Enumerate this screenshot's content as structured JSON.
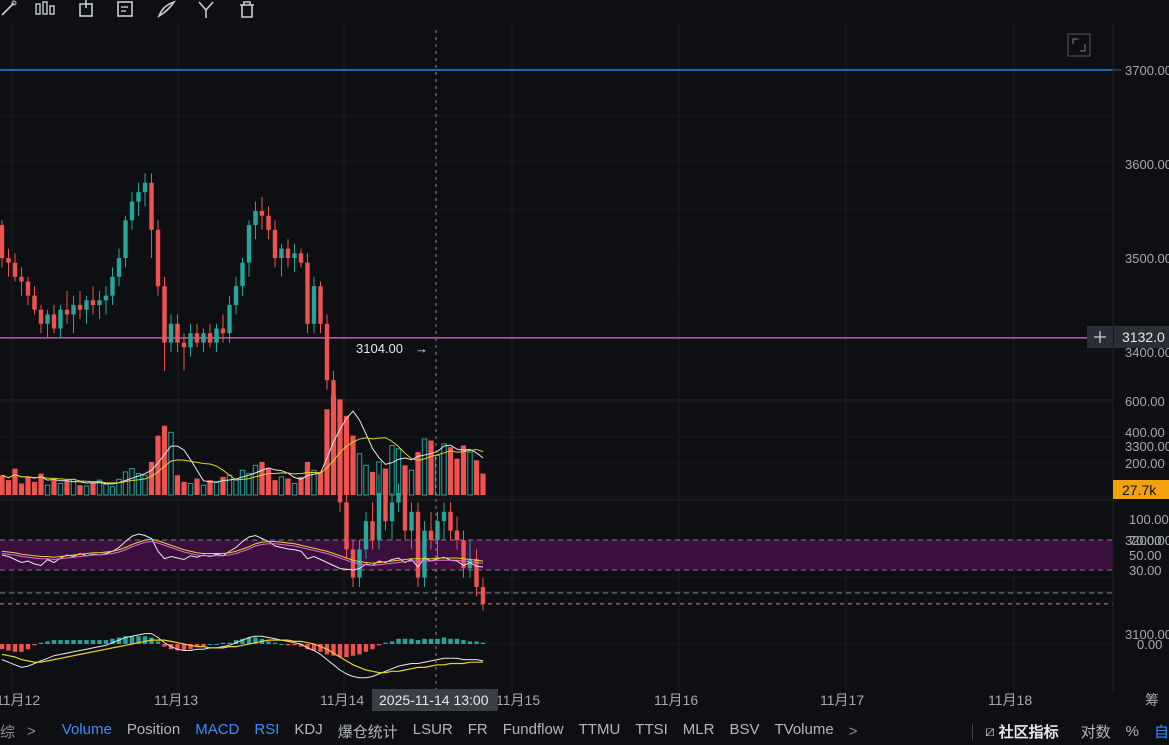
{
  "toolbar": {
    "icons": [
      "line-tool-icon",
      "candlestick-icon",
      "box-tool-icon",
      "note-edit-icon",
      "brush-icon",
      "fork-icon",
      "trash-icon"
    ]
  },
  "price_axis": {
    "ticks": [
      "3700.00",
      "3600.00",
      "3500.00",
      "3400.00",
      "3300.00",
      "3200.00",
      "3100.00"
    ],
    "current_price": "3132.0",
    "low_marker": "3104.00"
  },
  "volume_axis": {
    "ticks": [
      "600.00",
      "400.00",
      "200.00"
    ],
    "current_value": "27.7k"
  },
  "rsi_axis": {
    "ticks": [
      "100.00",
      "70.00",
      "50.00",
      "30.00"
    ]
  },
  "macd_axis": {
    "ticks": [
      "0.00"
    ]
  },
  "time_axis": {
    "ticks": [
      "11月12",
      "11月13",
      "11月14",
      "11月15",
      "11月16",
      "11月17",
      "11月18"
    ],
    "crosshair_label": "2025-11-14 13:00",
    "corner_label": "筹"
  },
  "bottom_bar": {
    "left_text": "综",
    "indicators": [
      {
        "label": "Volume",
        "active": true
      },
      {
        "label": "Position",
        "active": false
      },
      {
        "label": "MACD",
        "active": true
      },
      {
        "label": "RSI",
        "active": true
      },
      {
        "label": "KDJ",
        "active": false
      },
      {
        "label": "爆仓统计",
        "active": false
      },
      {
        "label": "LSUR",
        "active": false
      },
      {
        "label": "FR",
        "active": false
      },
      {
        "label": "Fundflow",
        "active": false
      },
      {
        "label": "TTMU",
        "active": false
      },
      {
        "label": "TTSI",
        "active": false
      },
      {
        "label": "MLR",
        "active": false
      },
      {
        "label": "BSV",
        "active": false
      },
      {
        "label": "TVolume",
        "active": false
      }
    ],
    "community_label": "社区指标",
    "log_label": "对数",
    "percent_label": "%",
    "auto_label": "自"
  },
  "colors": {
    "up": "#26a69a",
    "down": "#ef5350",
    "blue_line": "#2f7be5",
    "pink_line": "#e26ad4",
    "rsi_band": "#3a0f3e",
    "accent": "#3e8cf6",
    "volume_badge": "#f2a20a"
  },
  "chart_data": {
    "type": "candlestick",
    "candles": [
      [
        3535,
        3540,
        3490,
        3500
      ],
      [
        3500,
        3510,
        3480,
        3495
      ],
      [
        3495,
        3505,
        3475,
        3480
      ],
      [
        3480,
        3490,
        3460,
        3475
      ],
      [
        3475,
        3480,
        3450,
        3460
      ],
      [
        3460,
        3470,
        3440,
        3445
      ],
      [
        3445,
        3450,
        3420,
        3430
      ],
      [
        3430,
        3445,
        3415,
        3440
      ],
      [
        3440,
        3450,
        3420,
        3425
      ],
      [
        3425,
        3450,
        3415,
        3445
      ],
      [
        3445,
        3465,
        3430,
        3440
      ],
      [
        3440,
        3460,
        3420,
        3450
      ],
      [
        3450,
        3465,
        3435,
        3445
      ],
      [
        3445,
        3460,
        3430,
        3455
      ],
      [
        3455,
        3470,
        3440,
        3450
      ],
      [
        3450,
        3465,
        3435,
        3455
      ],
      [
        3455,
        3470,
        3440,
        3460
      ],
      [
        3460,
        3490,
        3450,
        3480
      ],
      [
        3480,
        3510,
        3470,
        3500
      ],
      [
        3500,
        3545,
        3490,
        3540
      ],
      [
        3540,
        3570,
        3530,
        3560
      ],
      [
        3560,
        3580,
        3545,
        3570
      ],
      [
        3570,
        3590,
        3555,
        3580
      ],
      [
        3580,
        3590,
        3500,
        3530
      ],
      [
        3530,
        3540,
        3460,
        3470
      ],
      [
        3470,
        3480,
        3380,
        3410
      ],
      [
        3410,
        3440,
        3400,
        3430
      ],
      [
        3430,
        3440,
        3400,
        3410
      ],
      [
        3410,
        3420,
        3380,
        3405
      ],
      [
        3405,
        3430,
        3395,
        3420
      ],
      [
        3420,
        3430,
        3405,
        3410
      ],
      [
        3410,
        3425,
        3400,
        3420
      ],
      [
        3420,
        3430,
        3405,
        3410
      ],
      [
        3410,
        3430,
        3400,
        3425
      ],
      [
        3425,
        3440,
        3410,
        3420
      ],
      [
        3420,
        3460,
        3410,
        3450
      ],
      [
        3450,
        3480,
        3440,
        3470
      ],
      [
        3470,
        3500,
        3460,
        3495
      ],
      [
        3495,
        3540,
        3480,
        3535
      ],
      [
        3535,
        3560,
        3520,
        3550
      ],
      [
        3550,
        3565,
        3530,
        3545
      ],
      [
        3545,
        3555,
        3520,
        3530
      ],
      [
        3530,
        3540,
        3490,
        3500
      ],
      [
        3500,
        3515,
        3480,
        3510
      ],
      [
        3510,
        3520,
        3490,
        3500
      ],
      [
        3500,
        3515,
        3485,
        3505
      ],
      [
        3505,
        3510,
        3490,
        3495
      ],
      [
        3495,
        3505,
        3420,
        3430
      ],
      [
        3430,
        3480,
        3420,
        3470
      ],
      [
        3470,
        3475,
        3420,
        3430
      ],
      [
        3430,
        3440,
        3360,
        3370
      ],
      [
        3370,
        3380,
        3300,
        3310
      ],
      [
        3310,
        3320,
        3230,
        3240
      ],
      [
        3240,
        3250,
        3180,
        3190
      ],
      [
        3190,
        3200,
        3150,
        3160
      ],
      [
        3160,
        3200,
        3150,
        3190
      ],
      [
        3190,
        3230,
        3180,
        3220
      ],
      [
        3220,
        3240,
        3190,
        3200
      ],
      [
        3200,
        3270,
        3190,
        3250
      ],
      [
        3250,
        3260,
        3210,
        3220
      ],
      [
        3220,
        3250,
        3200,
        3240
      ],
      [
        3240,
        3260,
        3230,
        3250
      ],
      [
        3250,
        3255,
        3200,
        3210
      ],
      [
        3210,
        3240,
        3190,
        3230
      ],
      [
        3230,
        3240,
        3150,
        3160
      ],
      [
        3160,
        3220,
        3150,
        3210
      ],
      [
        3210,
        3230,
        3190,
        3200
      ],
      [
        3200,
        3230,
        3180,
        3220
      ],
      [
        3220,
        3240,
        3200,
        3230
      ],
      [
        3230,
        3240,
        3200,
        3210
      ],
      [
        3210,
        3225,
        3190,
        3200
      ],
      [
        3200,
        3210,
        3160,
        3170
      ],
      [
        3170,
        3200,
        3160,
        3180
      ],
      [
        3180,
        3190,
        3140,
        3150
      ],
      [
        3150,
        3160,
        3125,
        3132
      ]
    ],
    "volume": [
      120,
      90,
      160,
      70,
      110,
      80,
      130,
      60,
      90,
      70,
      85,
      95,
      60,
      55,
      75,
      90,
      65,
      50,
      95,
      140,
      160,
      130,
      120,
      200,
      360,
      420,
      380,
      120,
      80,
      70,
      100,
      60,
      90,
      75,
      110,
      120,
      90,
      150,
      130,
      180,
      200,
      160,
      90,
      110,
      100,
      70,
      110,
      200,
      150,
      140,
      520,
      600,
      580,
      480,
      360,
      250,
      180,
      140,
      200,
      160,
      300,
      280,
      180,
      150,
      260,
      340,
      330,
      240,
      310,
      290,
      220,
      300,
      260,
      210,
      130
    ],
    "rsi": [
      50,
      48,
      44,
      40,
      42,
      38,
      36,
      44,
      40,
      46,
      50,
      48,
      52,
      49,
      51,
      50,
      52,
      55,
      60,
      68,
      75,
      78,
      76,
      72,
      55,
      45,
      48,
      46,
      44,
      49,
      47,
      50,
      48,
      51,
      49,
      55,
      60,
      68,
      74,
      76,
      72,
      68,
      62,
      60,
      58,
      57,
      55,
      45,
      48,
      44,
      40,
      36,
      32,
      31,
      30,
      32,
      38,
      36,
      42,
      40,
      44,
      46,
      40,
      44,
      34,
      46,
      42,
      45,
      47,
      43,
      42,
      36,
      40,
      35,
      34
    ],
    "rsi_ma": [
      52,
      51,
      50,
      48,
      47,
      46,
      45,
      45,
      44,
      45,
      46,
      47,
      48,
      49,
      50,
      50,
      51,
      52,
      54,
      57,
      61,
      64,
      67,
      68,
      66,
      63,
      60,
      57,
      54,
      52,
      50,
      49,
      49,
      49,
      49,
      50,
      52,
      55,
      58,
      62,
      64,
      65,
      65,
      64,
      63,
      62,
      60,
      58,
      56,
      54,
      52,
      49,
      46,
      43,
      40,
      38,
      37,
      36,
      37,
      38,
      39,
      40,
      41,
      42,
      42,
      42,
      42,
      43,
      43,
      43,
      43,
      42,
      41,
      40,
      39
    ],
    "macd": [
      -12,
      -14,
      -16,
      -18,
      -17,
      -15,
      -13,
      -11,
      -9,
      -8,
      -7,
      -6,
      -5,
      -4,
      -3,
      -2,
      -1,
      1,
      3,
      5,
      6,
      7,
      8,
      8,
      5,
      1,
      -2,
      -4,
      -5,
      -5,
      -4,
      -4,
      -3,
      -3,
      -2,
      -1,
      1,
      3,
      5,
      6,
      6,
      5,
      4,
      3,
      2,
      1,
      0,
      -3,
      -5,
      -8,
      -12,
      -16,
      -20,
      -23,
      -25,
      -26,
      -26,
      -25,
      -23,
      -21,
      -19,
      -17,
      -16,
      -15,
      -15,
      -14,
      -13,
      -12,
      -11,
      -11,
      -11,
      -12,
      -12,
      -12,
      -13
    ],
    "macd_signal": [
      -8,
      -9,
      -10,
      -12,
      -13,
      -14,
      -14,
      -13,
      -12,
      -11,
      -10,
      -9,
      -8,
      -7,
      -6,
      -5,
      -4,
      -3,
      -2,
      -1,
      0,
      1,
      2,
      3,
      3,
      3,
      2,
      1,
      0,
      -1,
      -2,
      -2,
      -3,
      -3,
      -3,
      -2,
      -2,
      -1,
      0,
      1,
      2,
      3,
      3,
      3,
      3,
      2,
      2,
      1,
      0,
      -2,
      -4,
      -7,
      -10,
      -13,
      -16,
      -18,
      -20,
      -21,
      -22,
      -22,
      -21,
      -21,
      -20,
      -19,
      -18,
      -18,
      -17,
      -16,
      -16,
      -15,
      -15,
      -15,
      -14,
      -14,
      -14
    ],
    "macd_hist": [
      -4,
      -5,
      -6,
      -6,
      -4,
      -1,
      1,
      2,
      3,
      3,
      3,
      3,
      3,
      3,
      3,
      3,
      3,
      4,
      5,
      6,
      6,
      6,
      6,
      5,
      2,
      -2,
      -4,
      -5,
      -5,
      -4,
      -2,
      -2,
      0,
      0,
      1,
      1,
      3,
      4,
      5,
      5,
      4,
      2,
      1,
      0,
      -1,
      -1,
      -2,
      -4,
      -5,
      -6,
      -8,
      -9,
      -10,
      -10,
      -9,
      -8,
      -6,
      -4,
      -1,
      1,
      2,
      4,
      4,
      4,
      3,
      4,
      4,
      4,
      5,
      4,
      4,
      3,
      2,
      2,
      1
    ],
    "price_lines": {
      "blue": 3700,
      "pink": 3415,
      "current": 3132
    }
  }
}
